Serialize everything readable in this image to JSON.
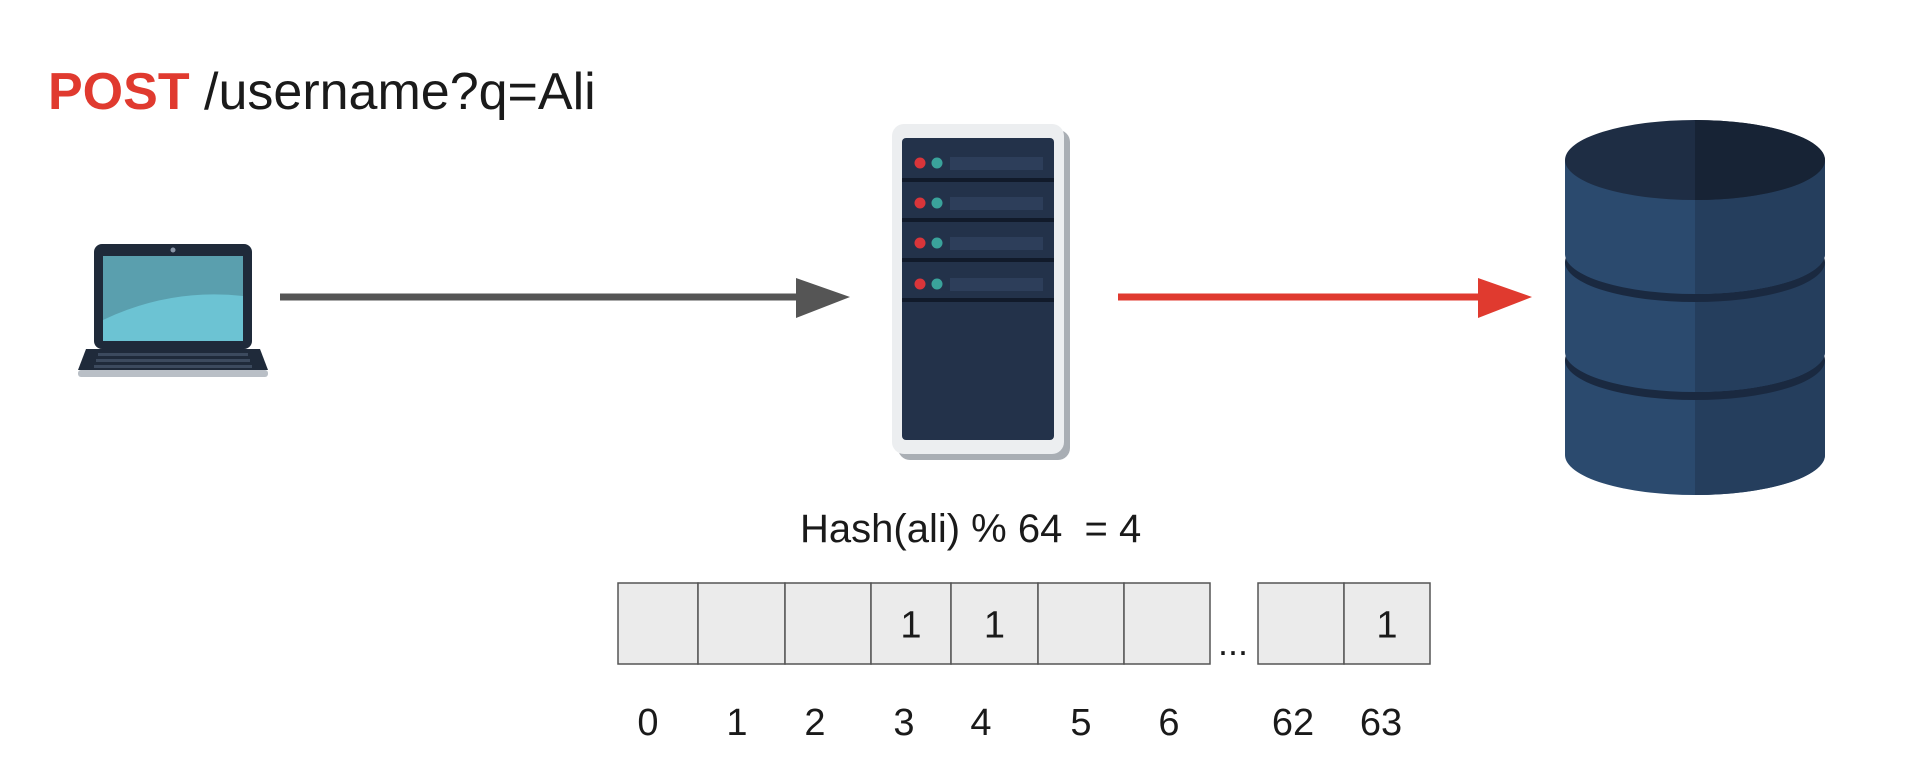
{
  "request": {
    "method": "POST",
    "path": " /username?q=Ali"
  },
  "hash_formula": "Hash(ali) % 64  = 4",
  "icons": {
    "client": "laptop-icon",
    "server": "server-icon",
    "database": "database-icon"
  },
  "arrows": [
    {
      "from": "client",
      "to": "server",
      "color": "#555555"
    },
    {
      "from": "server",
      "to": "database",
      "color": "#e03a2f"
    }
  ],
  "bit_array": {
    "cells": [
      {
        "index": "0",
        "value": ""
      },
      {
        "index": "1",
        "value": ""
      },
      {
        "index": "2",
        "value": ""
      },
      {
        "index": "3",
        "value": "1"
      },
      {
        "index": "4",
        "value": "1"
      },
      {
        "index": "5",
        "value": ""
      },
      {
        "index": "6",
        "value": ""
      },
      {
        "index": "62",
        "value": ""
      },
      {
        "index": "63",
        "value": "1"
      }
    ],
    "ellipsis": "...",
    "ellipsis_after_cell": 6,
    "cell_fill": "#ebebeb",
    "cell_stroke": "#555555"
  }
}
